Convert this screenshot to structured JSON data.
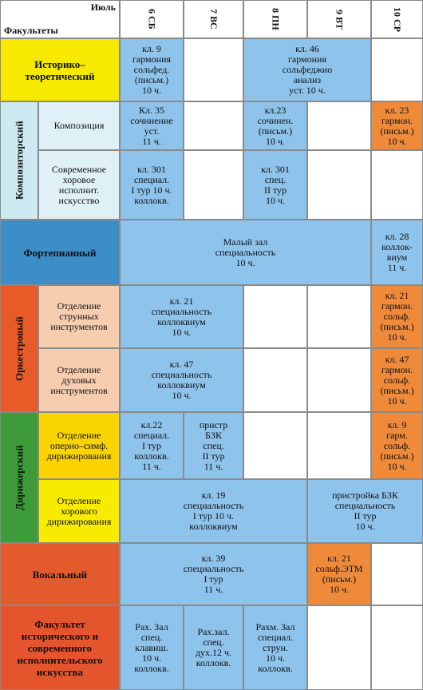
{
  "header": {
    "month": "Июль",
    "faculties_label": "Факультеты",
    "days": [
      {
        "date": "6",
        "weekday": "СБ"
      },
      {
        "date": "7",
        "weekday": "ВС"
      },
      {
        "date": "8",
        "weekday": "ПН"
      },
      {
        "date": "9",
        "weekday": "ВТ"
      },
      {
        "date": "10",
        "weekday": "СР"
      }
    ]
  },
  "faculties": [
    {
      "name": "Историко–\nтеоретический",
      "sessions": [
        "кл. 9\nгармония\nсольфед.\n(письм.)\n10 ч.",
        "кл. 46\nгармония\nсольфеджио\nанализ\nуст.  10 ч."
      ]
    },
    {
      "name": "Композиторский",
      "departments": [
        {
          "name": "Композиция",
          "sessions": [
            "Кл. 35\nсочинение\nуст.\n11 ч.",
            "кл.23\nсочинен.\n(письм.)\n10 ч.",
            "кл. 23\nгармон.\n(письм.)\n10 ч."
          ]
        },
        {
          "name": "Современное\nхоровое\nисполнит.\nискусство",
          "sessions": [
            "кл. 301\nспециал.\nI тур 10 ч.\nколлокв.",
            "кл. 301\nспец.\nII тур\n10 ч."
          ]
        }
      ]
    },
    {
      "name": "Фортепианный",
      "sessions": [
        "Малый зал\nспециальность\n10 ч.",
        "кл. 28\nколлок-\nвиум\n11 ч."
      ]
    },
    {
      "name": "Оркестровый",
      "departments": [
        {
          "name": "Отделение\nструнных\nинструментов",
          "sessions": [
            "кл. 21\nспециальность\nколлоквиум\n10 ч.",
            "кл. 21\nгармон.\nсольф.\n(письм.)\n10 ч."
          ]
        },
        {
          "name": "Отделение\nдуховых\nинструментов",
          "sessions": [
            "кл. 47\nспециальность\nколлоквиум\n10 ч.",
            "кл. 47\nгармон.\nсольф.\n(письм.)\n10 ч."
          ]
        }
      ]
    },
    {
      "name": "Дирижерский",
      "departments": [
        {
          "name": "Отделение\nоперно–симф.\nдирижирования",
          "sessions": [
            "кл.22\nспециал.\nI тур\nколлокв.\n11 ч.",
            "пристр\nБЗК\nспец.\nII тур\n11 ч.",
            "кл. 9\nгарм.\nсольф.\n(письм.)\n10 ч."
          ]
        },
        {
          "name": "Отделение\nхорового\nдирижирования",
          "sessions": [
            "кл.  19\nспециальность\nI тур 10 ч.\nколлоквиум",
            "пристройка БЗК\nспециальность\nII тур\n10 ч."
          ]
        }
      ]
    },
    {
      "name": "Вокальный",
      "sessions": [
        "кл. 39\nспециальность\nI тур\n11 ч.",
        "кл. 21\nсольф.ЭТМ\n(письм.)\n10 ч."
      ]
    },
    {
      "name": "Факультет\nисторического и\nсовременного\nисполнительского\nискусства",
      "sessions": [
        "Рах. Зал\nспец.\nклавиш.\n10 ч.\nколлокв.",
        "Рах.зал.\nспец.\nдух.12 ч.\nколлокв.",
        "Рахм. Зал\nспециал.\nструн.\n10 ч.\nколлокв."
      ]
    }
  ]
}
